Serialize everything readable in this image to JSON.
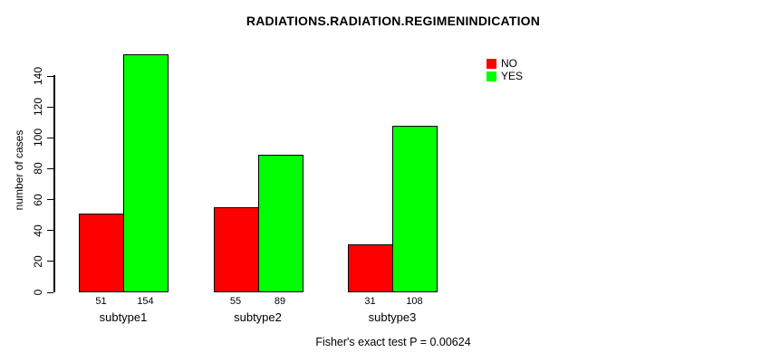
{
  "chart_data": {
    "type": "bar",
    "title": "RADIATIONS.RADIATION.REGIMENINDICATION",
    "ylabel": "number of cases",
    "xlabel": "",
    "categories": [
      "subtype1",
      "subtype2",
      "subtype3"
    ],
    "series": [
      {
        "name": "NO",
        "color": "#ff0000",
        "values": [
          51,
          55,
          31
        ]
      },
      {
        "name": "YES",
        "color": "#00ff00",
        "values": [
          154,
          89,
          108
        ]
      }
    ],
    "bar_value_labels": [
      [
        "51",
        "154"
      ],
      [
        "55",
        "89"
      ],
      [
        "31",
        "108"
      ]
    ],
    "yticks": [
      0,
      20,
      40,
      60,
      80,
      100,
      120,
      140
    ],
    "ylim": [
      0,
      154
    ],
    "grid": false,
    "legend_position": "top-right",
    "bar_border_color": "#000000",
    "footnote": "Fisher's exact test P = 0.00624"
  }
}
